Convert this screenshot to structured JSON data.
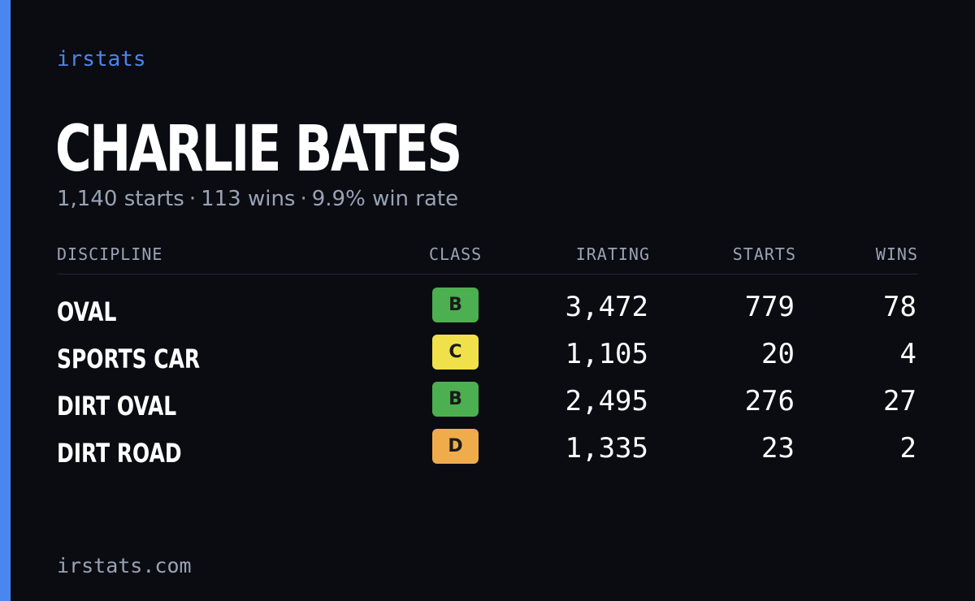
{
  "brand": "irstats",
  "player": {
    "name": "CHARLIE BATES",
    "starts_text": "1,140 starts",
    "wins_text": "113 wins",
    "win_rate_text": "9.9% win rate",
    "separator": "·"
  },
  "table": {
    "headers": {
      "discipline": "DISCIPLINE",
      "class": "CLASS",
      "irating": "IRATING",
      "starts": "STARTS",
      "wins": "WINS"
    },
    "rows": [
      {
        "discipline": "OVAL",
        "class": "B",
        "class_color": "#4caf50",
        "irating": "3,472",
        "starts": "779",
        "wins": "78"
      },
      {
        "discipline": "SPORTS CAR",
        "class": "C",
        "class_color": "#f0e14a",
        "irating": "1,105",
        "starts": "20",
        "wins": "4"
      },
      {
        "discipline": "DIRT OVAL",
        "class": "B",
        "class_color": "#4caf50",
        "irating": "2,495",
        "starts": "276",
        "wins": "27"
      },
      {
        "discipline": "DIRT ROAD",
        "class": "D",
        "class_color": "#f0ac4a",
        "irating": "1,335",
        "starts": "23",
        "wins": "2"
      }
    ]
  },
  "footer": "irstats.com",
  "colors": {
    "accent": "#4a86f0",
    "background": "#0a0c12",
    "muted_text": "#9aa3b5"
  }
}
